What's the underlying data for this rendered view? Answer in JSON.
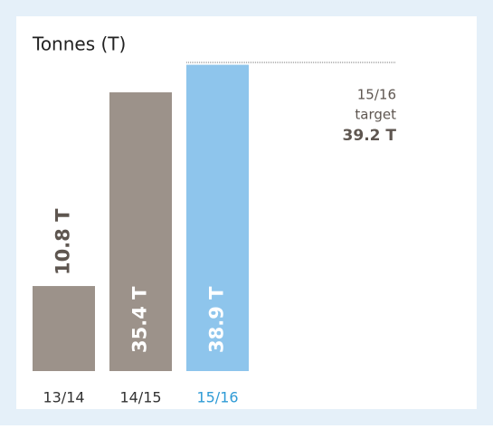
{
  "chart_data": {
    "type": "bar",
    "title": "Tonnes (T)",
    "categories": [
      "13/14",
      "14/15",
      "15/16"
    ],
    "values": [
      10.8,
      35.4,
      38.9
    ],
    "value_labels": [
      "10.8 T",
      "35.4 T",
      "38.9 T"
    ],
    "colors": [
      "#9c928a",
      "#9c928a",
      "#8ec5ec"
    ],
    "category_colors": [
      "#333333",
      "#333333",
      "#2f9bd6"
    ],
    "ylim": [
      0,
      40
    ],
    "target": {
      "category": "15/16",
      "text": "target",
      "value": 39.2,
      "value_label": "39.2 T"
    }
  }
}
